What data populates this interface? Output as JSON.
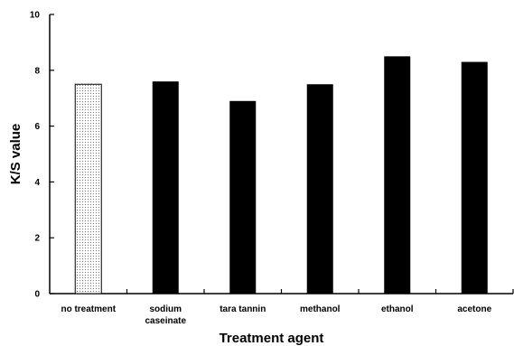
{
  "chart_data": {
    "type": "bar",
    "categories": [
      [
        "no treatment"
      ],
      [
        "sodium",
        "caseinate"
      ],
      [
        "tara tannin"
      ],
      [
        "methanol"
      ],
      [
        "ethanol"
      ],
      [
        "acetone"
      ]
    ],
    "values": [
      7.5,
      7.6,
      6.9,
      7.5,
      8.5,
      8.3
    ],
    "bar_fills": [
      "dotted",
      "solid",
      "solid",
      "solid",
      "solid",
      "solid"
    ],
    "xlabel": "Treatment agent",
    "ylabel": "K/S  value",
    "ylim": [
      0,
      10
    ],
    "yticks": [
      0,
      2,
      4,
      6,
      8,
      10
    ],
    "grid": false,
    "legend": "none",
    "colors": {
      "bar": "#000000",
      "dotted_bar_bg": "#ffffff",
      "dotted_bar_dot": "#555555",
      "axis": "#000000"
    }
  }
}
